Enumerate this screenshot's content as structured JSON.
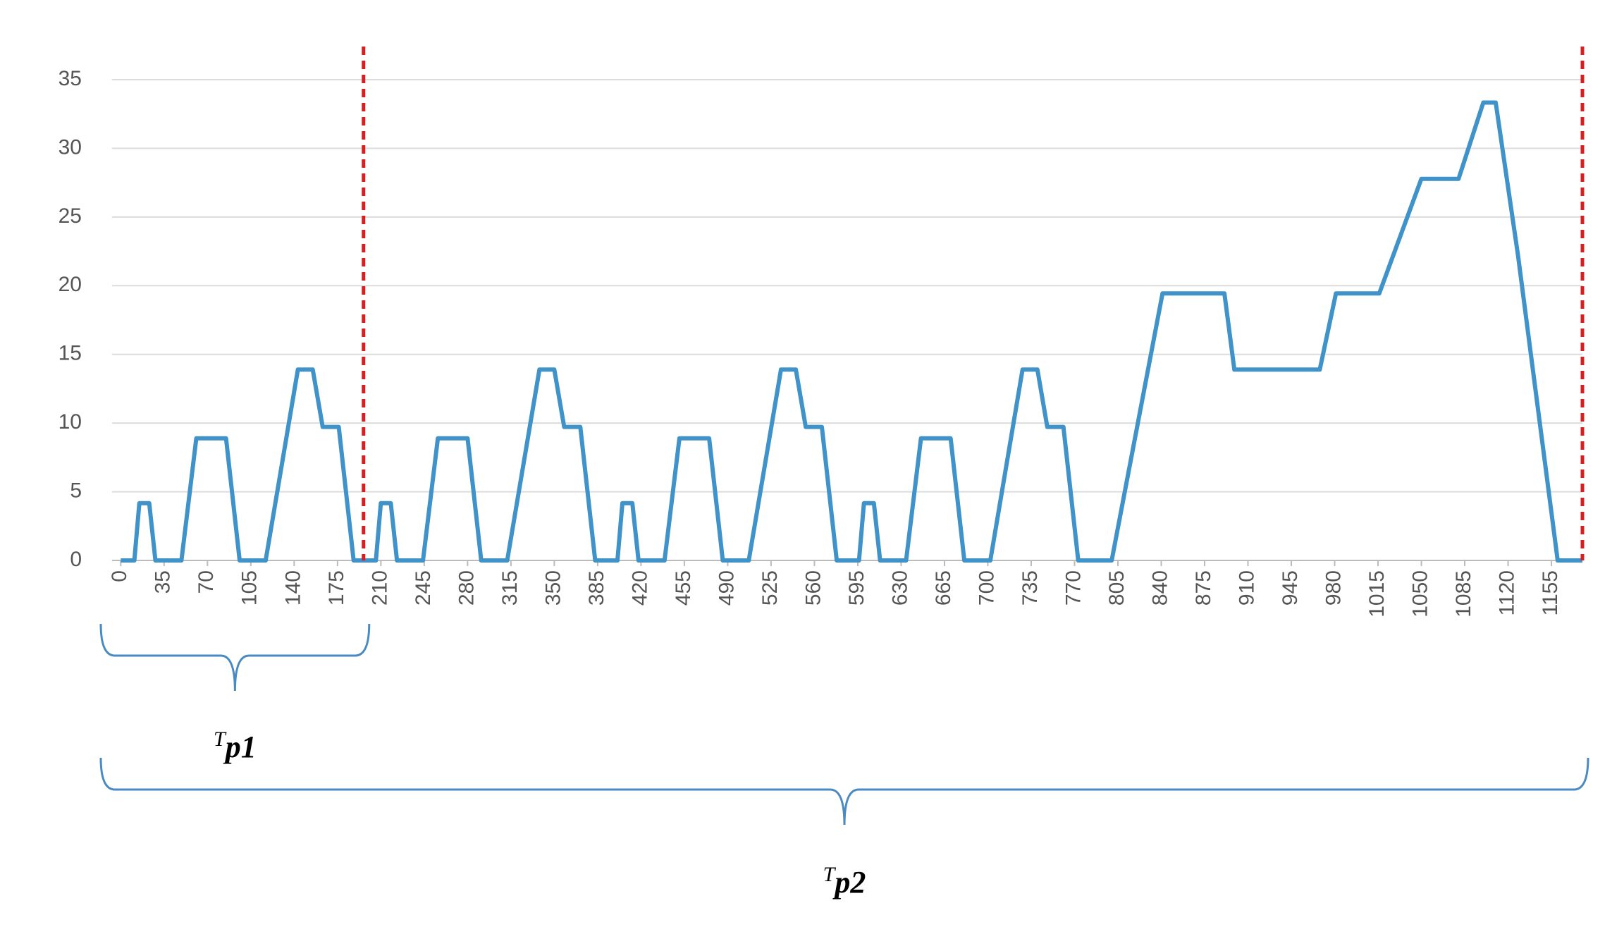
{
  "chart_data": {
    "type": "line",
    "x": [
      0,
      11,
      15,
      23,
      28,
      49,
      61,
      85,
      96,
      117,
      143,
      155,
      163,
      176,
      188,
      195,
      206,
      210,
      218,
      223,
      244,
      256,
      280,
      291,
      312,
      338,
      350,
      358,
      371,
      383,
      390,
      401,
      405,
      413,
      418,
      439,
      451,
      475,
      486,
      507,
      533,
      545,
      553,
      566,
      578,
      585,
      596,
      600,
      608,
      613,
      634,
      646,
      670,
      681,
      702,
      728,
      740,
      748,
      761,
      773,
      780,
      800,
      841,
      891,
      899,
      968,
      981,
      1016,
      1050,
      1080,
      1100,
      1110,
      1128,
      1160,
      1180
    ],
    "series": [
      {
        "color": "#3f93c8",
        "values": [
          0,
          0,
          4.17,
          4.17,
          0,
          0,
          8.89,
          8.89,
          0,
          0,
          13.89,
          13.89,
          9.72,
          9.72,
          0,
          0,
          0,
          4.17,
          4.17,
          0,
          0,
          8.89,
          8.89,
          0,
          0,
          13.89,
          13.89,
          9.72,
          9.72,
          0,
          0,
          0,
          4.17,
          4.17,
          0,
          0,
          8.89,
          8.89,
          0,
          0,
          13.89,
          13.89,
          9.72,
          9.72,
          0,
          0,
          0,
          4.17,
          4.17,
          0,
          0,
          8.89,
          8.89,
          0,
          0,
          13.89,
          13.89,
          9.72,
          9.72,
          0,
          0,
          0,
          19.44,
          19.44,
          13.89,
          13.89,
          19.44,
          19.44,
          27.78,
          27.78,
          33.33,
          33.33,
          22.22,
          0,
          0
        ]
      }
    ],
    "xlim": [
      -7,
      1180
    ],
    "xticks": [
      0,
      35,
      70,
      105,
      140,
      175,
      210,
      245,
      280,
      315,
      350,
      385,
      420,
      455,
      490,
      525,
      560,
      595,
      630,
      665,
      700,
      735,
      770,
      805,
      840,
      875,
      910,
      945,
      980,
      1015,
      1050,
      1085,
      1120,
      1155
    ],
    "ylim": [
      0,
      35
    ],
    "yticks": [
      0,
      5,
      10,
      15,
      20,
      25,
      30,
      35
    ],
    "grid": true,
    "vlines": [
      {
        "value": 196,
        "color": "#d42020"
      },
      {
        "value": 1180,
        "color": "#d42020"
      }
    ],
    "annotations": [
      {
        "text": "T",
        "subscript": "p1"
      },
      {
        "text": "T",
        "subscript": "p2"
      }
    ]
  }
}
